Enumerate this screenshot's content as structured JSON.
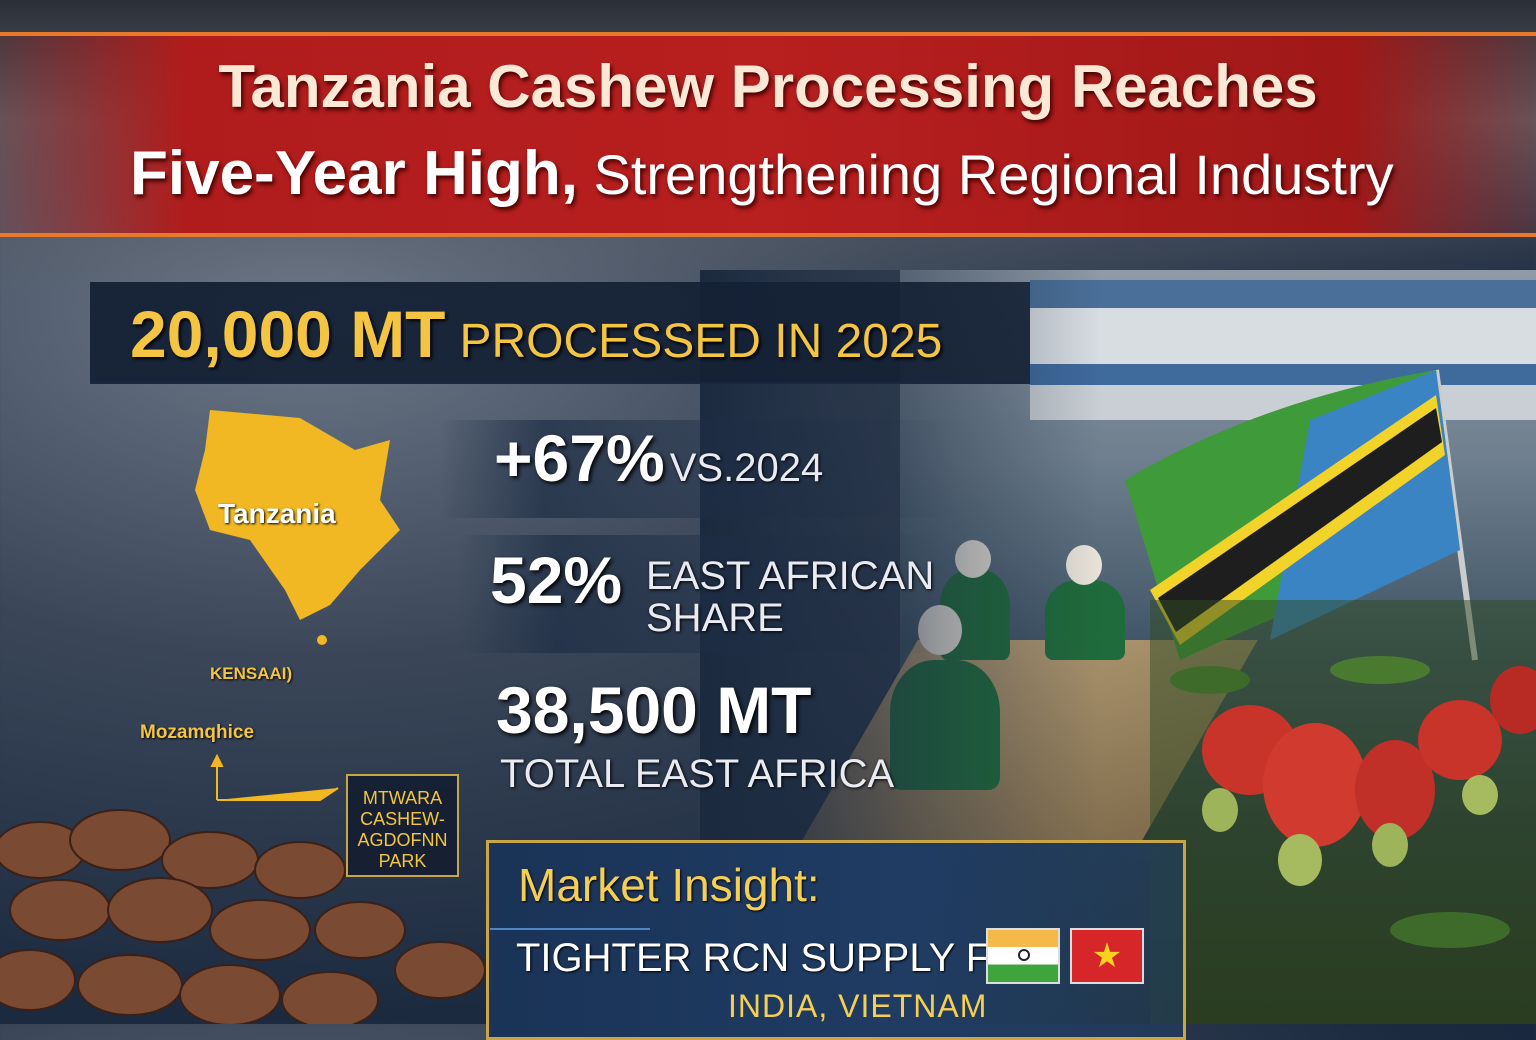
{
  "headline": {
    "line1": "Tanzania Cashew Processing Reaches",
    "line2_bold": "Five-Year High,",
    "line2_rest": " Strengthening Regional Industry"
  },
  "main_stat": {
    "value": "20,000 MT",
    "label": "PROCESSED IN 2025"
  },
  "stats": [
    {
      "value": "+67%",
      "label": "VS.2024"
    },
    {
      "value": "52%",
      "label_line1": "EAST AFRICAN",
      "label_line2": "SHARE"
    },
    {
      "value": "38,500 MT",
      "label": "TOTAL EAST AFRICA"
    }
  ],
  "map": {
    "country": "Tanzania",
    "label_kenya": "KENSAAI)",
    "label_mozambique": "Mozamqhice",
    "callout": [
      "MTWARA",
      "CASHEW-",
      "AGDOFNN",
      "PARK"
    ]
  },
  "insight": {
    "title": "Market Insight:",
    "text": "TIGHTER RCN SUPPLY FOR",
    "countries": "INDIA, VIETNAM",
    "flags": [
      "india-flag",
      "vietnam-flag"
    ]
  },
  "colors": {
    "banner_red": "#b81f1f",
    "accent_gold": "#f4c542",
    "navy": "#1c2a40",
    "banner_border": "#e8782a"
  }
}
